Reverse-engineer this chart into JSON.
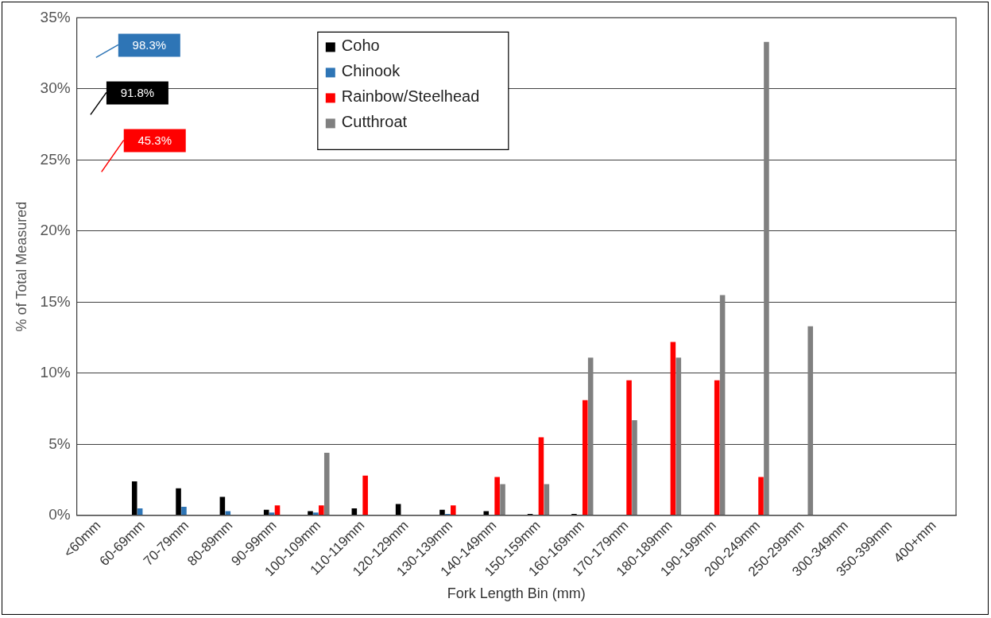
{
  "chart_data": {
    "type": "bar",
    "xlabel": "Fork Length Bin (mm)",
    "ylabel": "% of Total Measured",
    "categories": [
      "<60mm",
      "60-69mm",
      "70-79mm",
      "80-89mm",
      "90-99mm",
      "100-109mm",
      "110-119mm",
      "120-129mm",
      "130-139mm",
      "140-149mm",
      "150-159mm",
      "160-169mm",
      "170-179mm",
      "180-189mm",
      "190-199mm",
      "200-249mm",
      "250-299mm",
      "300-349mm",
      "350-399mm",
      "400+mm"
    ],
    "series": [
      {
        "name": "Coho",
        "color": "#000000",
        "values": [
          null,
          2.4,
          1.9,
          1.3,
          0.4,
          0.3,
          0.5,
          0.8,
          0.4,
          0.3,
          0.1,
          0.1,
          0,
          0,
          0,
          0,
          0,
          0,
          0,
          0
        ],
        "value_labels": [
          "91.8%",
          null,
          null,
          null,
          null,
          null,
          null,
          null,
          null,
          null,
          null,
          null,
          null,
          null,
          null,
          null,
          null,
          null,
          null,
          null
        ]
      },
      {
        "name": "Chinook",
        "color": "#2e75b6",
        "values": [
          null,
          0.5,
          0.6,
          0.3,
          0.2,
          0.2,
          0,
          0,
          0.1,
          0,
          0,
          0,
          0,
          0,
          0,
          0,
          0,
          0,
          0,
          0
        ],
        "value_labels": [
          "98.3%",
          null,
          null,
          null,
          null,
          null,
          null,
          null,
          null,
          null,
          null,
          null,
          null,
          null,
          null,
          null,
          null,
          null,
          null,
          null
        ]
      },
      {
        "name": "Rainbow/Steelhead",
        "color": "#ff0000",
        "values": [
          null,
          0,
          0,
          0,
          0.7,
          0.7,
          2.8,
          0,
          0.7,
          2.7,
          5.5,
          8.1,
          9.5,
          12.2,
          9.5,
          2.7,
          0,
          0,
          0,
          0
        ],
        "value_labels": [
          "45.3%",
          null,
          null,
          null,
          null,
          null,
          null,
          null,
          null,
          null,
          null,
          null,
          null,
          null,
          null,
          null,
          null,
          null,
          null,
          null
        ]
      },
      {
        "name": "Cutthroat",
        "color": "#808080",
        "values": [
          0,
          0,
          0,
          0,
          0,
          4.4,
          0,
          0,
          0,
          2.2,
          2.2,
          11.1,
          6.7,
          11.1,
          15.5,
          33.3,
          13.3,
          0,
          0,
          0
        ]
      }
    ],
    "ylim": [
      0,
      35
    ],
    "yticks": [
      {
        "value": 0,
        "label": "0%"
      },
      {
        "value": 5,
        "label": "5%"
      },
      {
        "value": 10,
        "label": "10%"
      },
      {
        "value": 15,
        "label": "15%"
      },
      {
        "value": 20,
        "label": "20%"
      },
      {
        "value": 25,
        "label": "25%"
      },
      {
        "value": 30,
        "label": "30%"
      },
      {
        "value": 35,
        "label": "35%"
      }
    ],
    "grid": "y",
    "legend": "top"
  }
}
